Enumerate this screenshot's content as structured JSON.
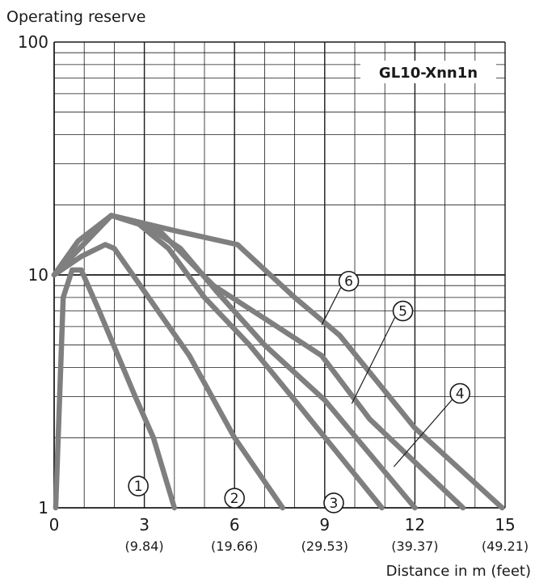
{
  "chart_data": {
    "type": "line",
    "title": "GL10-Xnn1n",
    "ylabel": "Operating reserve",
    "xlabel": "Distance in m (feet)",
    "yscale": "log",
    "ylim": [
      1,
      100
    ],
    "xlim": [
      0,
      15
    ],
    "y_ticks": [
      "1",
      "10",
      "100"
    ],
    "x_ticks": [
      {
        "value": 0,
        "label": "0",
        "sublabel": ""
      },
      {
        "value": 3,
        "label": "3",
        "sublabel": "(9.84)"
      },
      {
        "value": 6,
        "label": "6",
        "sublabel": "(19.66)"
      },
      {
        "value": 9,
        "label": "9",
        "sublabel": "(29.53)"
      },
      {
        "value": 12,
        "label": "12",
        "sublabel": "(39.37)"
      },
      {
        "value": 15,
        "label": "15",
        "sublabel": "(49.21)"
      }
    ],
    "grid": true,
    "line_color": "#7f7f7f",
    "series": [
      {
        "name": "1",
        "points": [
          [
            0.05,
            1
          ],
          [
            0.3,
            8
          ],
          [
            0.6,
            10.5
          ],
          [
            0.9,
            10.5
          ],
          [
            1.5,
            7
          ],
          [
            2.7,
            3
          ],
          [
            3.3,
            2
          ],
          [
            4.0,
            1
          ]
        ]
      },
      {
        "name": "2",
        "points": [
          [
            0,
            10
          ],
          [
            0.9,
            12
          ],
          [
            1.7,
            13.5
          ],
          [
            2.0,
            13
          ],
          [
            3.0,
            8.5
          ],
          [
            4.5,
            4.5
          ],
          [
            6.0,
            2.0
          ],
          [
            7.6,
            1
          ]
        ]
      },
      {
        "name": "3",
        "points": [
          [
            0,
            10
          ],
          [
            0.8,
            14
          ],
          [
            1.9,
            18
          ],
          [
            2.7,
            17
          ],
          [
            3.8,
            13
          ],
          [
            5.0,
            8
          ],
          [
            6.5,
            5
          ],
          [
            8.0,
            2.9
          ],
          [
            10.9,
            1
          ]
        ]
      },
      {
        "name": "4",
        "points": [
          [
            0,
            10
          ],
          [
            1.9,
            18
          ],
          [
            3.0,
            16.5
          ],
          [
            4.2,
            13
          ],
          [
            5.4,
            8.5
          ],
          [
            7.0,
            5
          ],
          [
            9.0,
            2.9
          ],
          [
            12.0,
            1
          ]
        ]
      },
      {
        "name": "5",
        "points": [
          [
            0,
            10
          ],
          [
            1.9,
            18
          ],
          [
            3.5,
            15.5
          ],
          [
            5.3,
            9
          ],
          [
            7.0,
            6.5
          ],
          [
            8.9,
            4.5
          ],
          [
            10.5,
            2.4
          ],
          [
            13.6,
            1
          ]
        ]
      },
      {
        "name": "6",
        "points": [
          [
            0,
            10
          ],
          [
            1.9,
            18
          ],
          [
            4.0,
            15.5
          ],
          [
            6.1,
            13.5
          ],
          [
            8.0,
            8
          ],
          [
            9.5,
            5.5
          ],
          [
            12.0,
            2.2
          ],
          [
            14.9,
            1
          ]
        ]
      }
    ],
    "series_labels": [
      {
        "name": "1",
        "x": 2.8,
        "y": 1.24,
        "leader_to": null
      },
      {
        "name": "2",
        "x": 6.0,
        "y": 1.1,
        "leader_to": null
      },
      {
        "name": "3",
        "x": 9.3,
        "y": 1.05,
        "leader_to": null
      },
      {
        "name": "4",
        "x": 13.5,
        "y": 3.1,
        "leader_to": [
          11.3,
          1.5
        ]
      },
      {
        "name": "5",
        "x": 11.6,
        "y": 7.0,
        "leader_to": [
          9.9,
          2.8
        ]
      },
      {
        "name": "6",
        "x": 9.8,
        "y": 9.4,
        "leader_to": [
          8.9,
          6.1
        ]
      }
    ]
  }
}
